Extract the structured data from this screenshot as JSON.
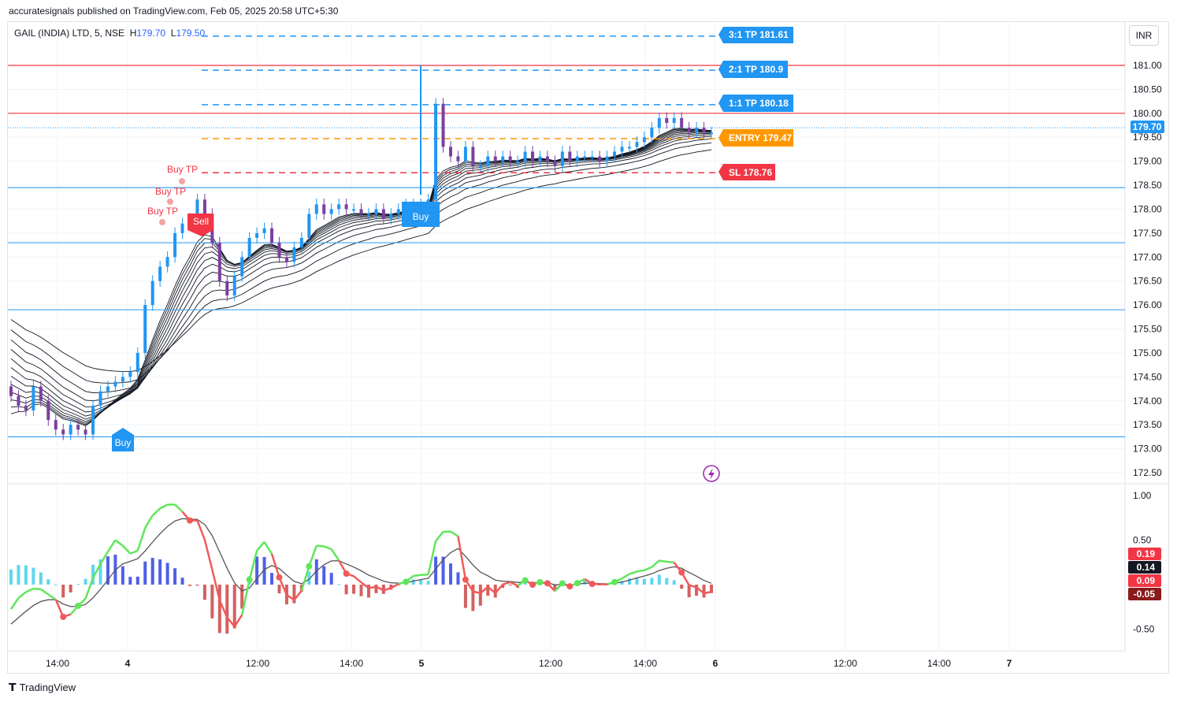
{
  "header": {
    "published": "accuratesignals published on TradingView.com, Feb 05, 2025 20:58 UTC+5:30",
    "symbol": "GAIL (INDIA) LTD, 5, NSE",
    "high_label": "H",
    "high_value": "179.70",
    "low_label": "L",
    "low_value": "179.50",
    "currency": "INR"
  },
  "footer": {
    "brand": "TradingView"
  },
  "levels": {
    "tp3": "3:1 TP 181.61",
    "tp2": "2:1 TP 180.9",
    "tp1": "1:1 TP 180.18",
    "entry": "ENTRY 179.47",
    "sl": "SL 178.76",
    "last_price": "179.70"
  },
  "signals": {
    "buy": "Buy",
    "sell": "Sell",
    "buy_tp": "Buy TP"
  },
  "price_axis": [
    "181.00",
    "180.50",
    "180.00",
    "179.50",
    "179.00",
    "178.50",
    "178.00",
    "177.50",
    "177.00",
    "176.50",
    "176.00",
    "175.50",
    "175.00",
    "174.50",
    "174.00",
    "173.50",
    "173.00",
    "172.50"
  ],
  "osc_axis": [
    "1.00",
    "0.50",
    "-0.50"
  ],
  "osc_badges": [
    "0.19",
    "0.14",
    "0.09",
    "-0.05"
  ],
  "time_axis": [
    "14:00",
    "4",
    "12:00",
    "14:00",
    "5",
    "12:00",
    "14:00",
    "6",
    "12:00",
    "14:00",
    "7"
  ],
  "colors": {
    "buy_blue": "#2196f3",
    "bear_purple": "#7b3fa0",
    "red_line": "#f23645",
    "entry_orange": "#ff9800",
    "osc_green": "#5fe65a",
    "osc_red": "#f05a5a"
  },
  "chart_data": {
    "type": "candlestick",
    "ylim": [
      172.3,
      181.5
    ],
    "horizontal_levels": [
      181.0,
      180.0,
      178.45,
      177.3,
      175.9,
      173.25
    ],
    "trade_levels": {
      "tp3": 181.61,
      "tp2": 180.9,
      "tp1": 180.18,
      "entry": 179.47,
      "sl": 178.76
    },
    "close_series": [
      174.1,
      173.9,
      173.8,
      174.3,
      174.0,
      173.6,
      173.4,
      173.3,
      173.5,
      173.4,
      173.3,
      173.9,
      174.2,
      174.3,
      174.4,
      174.5,
      174.6,
      175.0,
      176.0,
      176.5,
      176.8,
      177.0,
      177.5,
      177.7,
      177.8,
      178.2,
      177.9,
      177.3,
      176.5,
      176.2,
      176.6,
      177.0,
      177.4,
      177.5,
      177.6,
      177.3,
      177.0,
      176.9,
      177.2,
      177.4,
      177.9,
      178.1,
      177.9,
      178.0,
      178.1,
      178.0,
      178.0,
      177.9,
      177.9,
      178.0,
      177.8,
      177.9,
      178.0,
      178.1,
      178.1,
      178.1,
      178.2,
      180.2,
      179.3,
      179.1,
      179.0,
      179.3,
      178.9,
      178.9,
      179.1,
      179.0,
      179.1,
      179.0,
      179.0,
      179.2,
      179.0,
      179.1,
      179.0,
      178.9,
      179.2,
      179.0,
      179.1,
      179.1,
      179.1,
      179.0,
      179.1,
      179.2,
      179.3,
      179.3,
      179.4,
      179.5,
      179.7,
      179.9,
      179.8,
      179.9,
      179.7,
      179.6,
      179.7,
      179.6,
      179.6
    ]
  }
}
